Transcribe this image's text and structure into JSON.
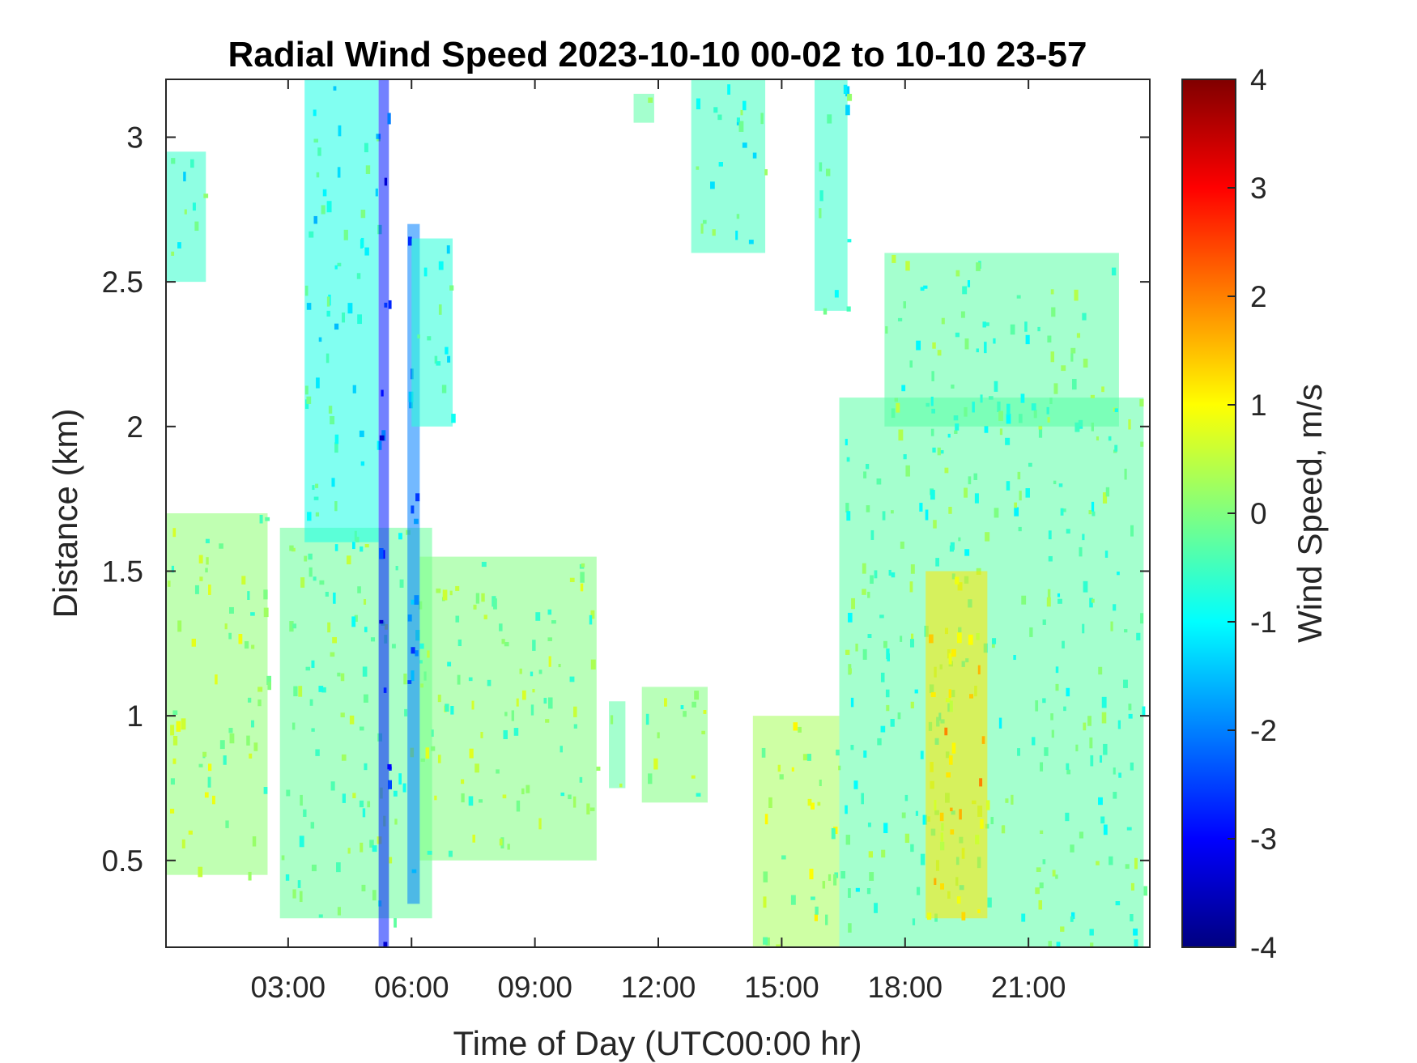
{
  "chart_data": {
    "type": "heatmap",
    "title": "Radial Wind Speed 2023-10-10 00-02 to 10-10 23-57",
    "xlabel": "Time of Day (UTC00:00 hr)",
    "ylabel": "Distance (km)",
    "colorbar_label": "Wind Speed, m/s",
    "x_unit": "hours UTC",
    "xlim": [
      0.03,
      23.95
    ],
    "ylim": [
      0.2,
      3.2
    ],
    "clim": [
      -4,
      4
    ],
    "colormap": "jet",
    "grid": false,
    "x_ticks": [
      {
        "value": 3,
        "label": "03:00"
      },
      {
        "value": 6,
        "label": "06:00"
      },
      {
        "value": 9,
        "label": "09:00"
      },
      {
        "value": 12,
        "label": "12:00"
      },
      {
        "value": 15,
        "label": "15:00"
      },
      {
        "value": 18,
        "label": "18:00"
      },
      {
        "value": 21,
        "label": "21:00"
      }
    ],
    "y_ticks": [
      {
        "value": 0.5,
        "label": "0.5"
      },
      {
        "value": 1,
        "label": "1"
      },
      {
        "value": 1.5,
        "label": "1.5"
      },
      {
        "value": 2,
        "label": "2"
      },
      {
        "value": 2.5,
        "label": "2.5"
      },
      {
        "value": 3,
        "label": "3"
      }
    ],
    "colorbar_ticks": [
      {
        "value": 4,
        "label": "4"
      },
      {
        "value": 3,
        "label": "3"
      },
      {
        "value": 2,
        "label": "2"
      },
      {
        "value": 1,
        "label": "1"
      },
      {
        "value": 0,
        "label": "0"
      },
      {
        "value": -1,
        "label": "-1"
      },
      {
        "value": -2,
        "label": "-2"
      },
      {
        "value": -3,
        "label": "-3"
      },
      {
        "value": -4,
        "label": "-4"
      }
    ],
    "data_regions": [
      {
        "t0": 0.03,
        "t1": 2.5,
        "r0": 0.45,
        "r1": 1.7,
        "speed": 0.1
      },
      {
        "t0": 0.03,
        "t1": 1.0,
        "r0": 2.5,
        "r1": 2.95,
        "speed": -0.6
      },
      {
        "t0": 2.8,
        "t1": 6.5,
        "r0": 0.3,
        "r1": 1.65,
        "speed": -0.2
      },
      {
        "t0": 3.4,
        "t1": 5.2,
        "r0": 1.6,
        "r1": 3.2,
        "speed": -0.8
      },
      {
        "t0": 5.2,
        "t1": 5.45,
        "r0": 0.2,
        "r1": 3.2,
        "speed": -2.8
      },
      {
        "t0": 5.9,
        "t1": 6.2,
        "r0": 0.35,
        "r1": 2.7,
        "speed": -2.0
      },
      {
        "t0": 6.2,
        "t1": 10.5,
        "r0": 0.5,
        "r1": 1.55,
        "speed": 0.0
      },
      {
        "t0": 6.0,
        "t1": 7.0,
        "r0": 2.0,
        "r1": 2.65,
        "speed": -0.7
      },
      {
        "t0": 10.8,
        "t1": 11.2,
        "r0": 0.75,
        "r1": 1.05,
        "speed": -0.3
      },
      {
        "t0": 11.6,
        "t1": 13.2,
        "r0": 0.7,
        "r1": 1.1,
        "speed": 0.0
      },
      {
        "t0": 11.4,
        "t1": 11.9,
        "r0": 3.05,
        "r1": 3.15,
        "speed": -0.3
      },
      {
        "t0": 12.8,
        "t1": 14.6,
        "r0": 2.6,
        "r1": 3.2,
        "speed": -0.5
      },
      {
        "t0": 14.3,
        "t1": 16.4,
        "r0": 0.2,
        "r1": 1.0,
        "speed": 0.3
      },
      {
        "t0": 16.4,
        "t1": 23.8,
        "r0": 0.2,
        "r1": 2.1,
        "speed": -0.3
      },
      {
        "t0": 17.5,
        "t1": 23.2,
        "r0": 2.0,
        "r1": 2.6,
        "speed": -0.3
      },
      {
        "t0": 18.5,
        "t1": 20.0,
        "r0": 0.3,
        "r1": 1.5,
        "speed": 1.2
      },
      {
        "t0": 15.8,
        "t1": 16.6,
        "r0": 2.4,
        "r1": 3.2,
        "speed": -0.6
      }
    ]
  }
}
